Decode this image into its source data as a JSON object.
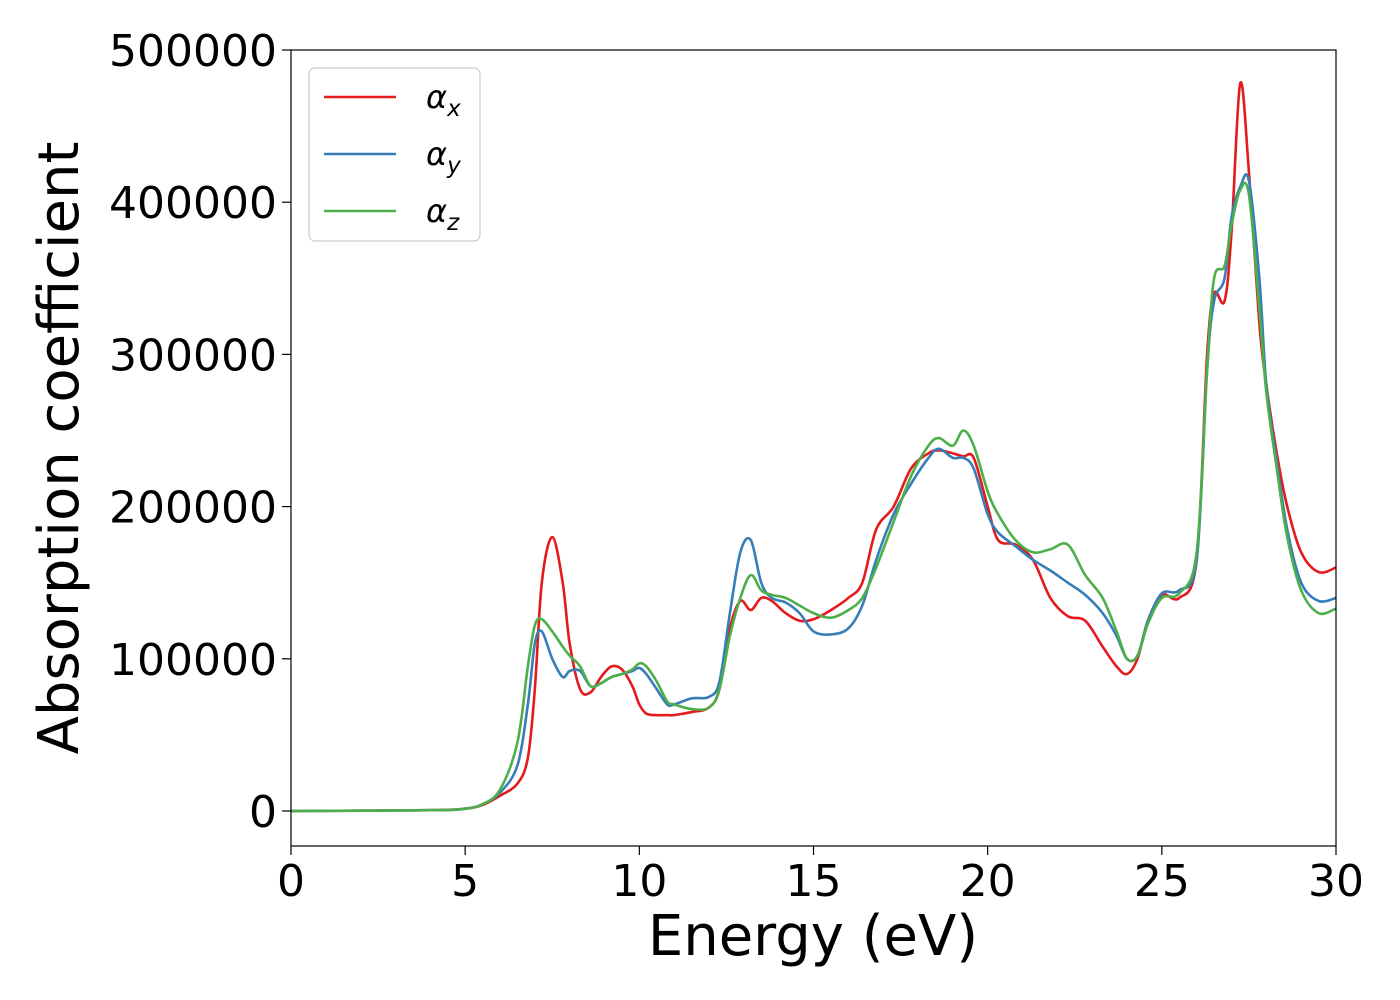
{
  "chart_data": {
    "type": "line",
    "title": "",
    "xlabel": "Energy (eV)",
    "ylabel": "Absorption coefficient",
    "xlim": [
      0,
      30
    ],
    "ylim": [
      -23000,
      500000
    ],
    "xticks": [
      0,
      5,
      10,
      15,
      20,
      25,
      30
    ],
    "yticks": [
      0,
      100000,
      200000,
      300000,
      400000,
      500000
    ],
    "grid": false,
    "legend_position": "top-left",
    "series": [
      {
        "name": "αx",
        "label_base": "α",
        "label_sub": "x",
        "color": "#e41a1c",
        "x": [
          0,
          4,
          5,
          5.5,
          6,
          6.5,
          6.8,
          7,
          7.2,
          7.5,
          7.8,
          8,
          8.3,
          8.6,
          8.9,
          9.2,
          9.5,
          9.8,
          10,
          10.2,
          10.5,
          10.8,
          11,
          11.5,
          12,
          12.3,
          12.6,
          12.9,
          13.2,
          13.5,
          13.8,
          14.2,
          14.6,
          15,
          15.5,
          16,
          16.4,
          16.8,
          17.3,
          17.8,
          18.3,
          18.6,
          19,
          19.3,
          19.6,
          20,
          20.3,
          20.8,
          21.3,
          21.8,
          22.3,
          22.8,
          23.3,
          23.7,
          24,
          24.3,
          24.6,
          25,
          25.5,
          26,
          26.3,
          26.5,
          26.8,
          27,
          27.25,
          27.5,
          27.8,
          28,
          28.3,
          28.6,
          29,
          29.5,
          30
        ],
        "y": [
          0,
          500,
          1500,
          4000,
          10000,
          18000,
          35000,
          80000,
          150000,
          180000,
          150000,
          110000,
          80000,
          78000,
          88000,
          95000,
          93000,
          82000,
          70000,
          64000,
          63000,
          63000,
          63000,
          65000,
          68000,
          80000,
          120000,
          138000,
          132000,
          140000,
          138000,
          130000,
          125000,
          126000,
          132000,
          140000,
          150000,
          185000,
          200000,
          225000,
          235000,
          237000,
          235000,
          233000,
          232000,
          200000,
          178000,
          175000,
          165000,
          140000,
          128000,
          125000,
          108000,
          95000,
          90000,
          100000,
          125000,
          142000,
          140000,
          165000,
          300000,
          340000,
          335000,
          380000,
          478000,
          420000,
          320000,
          280000,
          235000,
          200000,
          170000,
          157000,
          160000
        ]
      },
      {
        "name": "αy",
        "label_base": "α",
        "label_sub": "y",
        "color": "#377eb8",
        "x": [
          0,
          4,
          5,
          5.5,
          6,
          6.5,
          6.8,
          7,
          7.2,
          7.5,
          7.8,
          8,
          8.3,
          8.6,
          8.9,
          9.2,
          9.5,
          9.8,
          10,
          10.2,
          10.5,
          10.8,
          11,
          11.5,
          12,
          12.3,
          12.6,
          12.9,
          13.2,
          13.5,
          13.8,
          14.2,
          14.6,
          15,
          15.5,
          16,
          16.4,
          16.8,
          17.3,
          17.8,
          18.3,
          18.6,
          19,
          19.3,
          19.6,
          20,
          20.3,
          20.8,
          21.3,
          21.8,
          22.3,
          22.8,
          23.3,
          23.7,
          24,
          24.3,
          24.6,
          25,
          25.5,
          26,
          26.3,
          26.5,
          26.8,
          27,
          27.25,
          27.5,
          27.8,
          28,
          28.3,
          28.6,
          29,
          29.5,
          30
        ],
        "y": [
          0,
          500,
          1500,
          4500,
          12000,
          30000,
          70000,
          110000,
          118000,
          100000,
          88000,
          92000,
          92000,
          82000,
          84000,
          88000,
          90000,
          92000,
          94000,
          90000,
          80000,
          70000,
          70000,
          74000,
          75000,
          85000,
          130000,
          170000,
          178000,
          150000,
          140000,
          137000,
          130000,
          118000,
          116000,
          120000,
          135000,
          165000,
          195000,
          215000,
          232000,
          238000,
          232000,
          232000,
          225000,
          195000,
          183000,
          174000,
          165000,
          158000,
          150000,
          142000,
          130000,
          115000,
          100000,
          102000,
          125000,
          143000,
          145000,
          165000,
          290000,
          335000,
          350000,
          390000,
          410000,
          414000,
          350000,
          280000,
          230000,
          185000,
          150000,
          138000,
          140000
        ]
      },
      {
        "name": "αz",
        "label_base": "α",
        "label_sub": "z",
        "color": "#4daf4a",
        "x": [
          0,
          4,
          5,
          5.5,
          6,
          6.5,
          6.8,
          7,
          7.2,
          7.5,
          7.8,
          8,
          8.3,
          8.6,
          8.9,
          9.2,
          9.5,
          9.8,
          10,
          10.2,
          10.5,
          10.8,
          11,
          11.5,
          12,
          12.3,
          12.6,
          12.9,
          13.2,
          13.5,
          13.8,
          14.2,
          14.6,
          15,
          15.5,
          16,
          16.4,
          16.8,
          17.3,
          17.8,
          18.3,
          18.6,
          19,
          19.3,
          19.6,
          20,
          20.3,
          20.8,
          21.3,
          21.8,
          22.3,
          22.8,
          23.3,
          23.7,
          24,
          24.3,
          24.6,
          25,
          25.5,
          26,
          26.3,
          26.5,
          26.8,
          27,
          27.25,
          27.5,
          27.8,
          28,
          28.3,
          28.6,
          29,
          29.5,
          30
        ],
        "y": [
          0,
          500,
          1500,
          4500,
          14000,
          45000,
          95000,
          122000,
          126000,
          118000,
          108000,
          102000,
          95000,
          82000,
          84000,
          88000,
          90000,
          93000,
          97000,
          95000,
          85000,
          72000,
          70000,
          67000,
          68000,
          80000,
          115000,
          140000,
          155000,
          145000,
          142000,
          140000,
          135000,
          130000,
          127000,
          132000,
          140000,
          160000,
          190000,
          220000,
          240000,
          245000,
          240000,
          250000,
          240000,
          210000,
          195000,
          178000,
          170000,
          172000,
          175000,
          155000,
          140000,
          118000,
          100000,
          102000,
          123000,
          140000,
          143000,
          170000,
          290000,
          350000,
          358000,
          385000,
          408000,
          405000,
          330000,
          275000,
          225000,
          180000,
          145000,
          130000,
          133000
        ]
      }
    ]
  }
}
